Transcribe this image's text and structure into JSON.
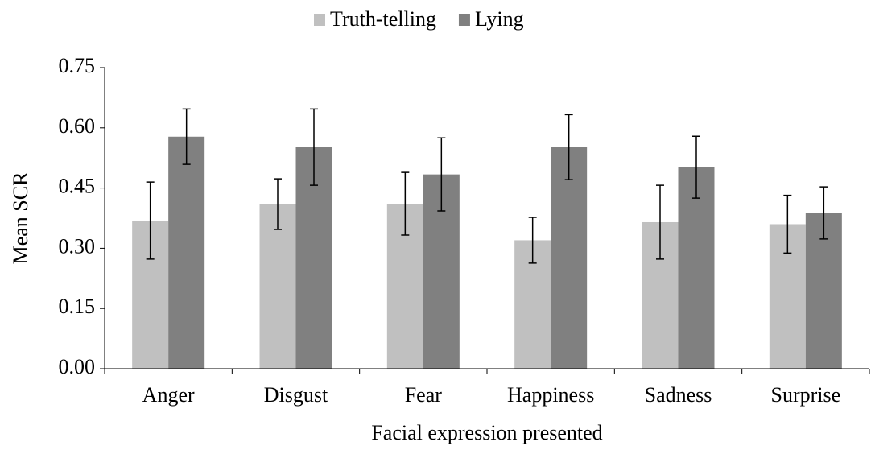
{
  "chart_data": {
    "type": "bar",
    "xlabel": "Facial expression presented",
    "ylabel": "Mean SCR",
    "categories": [
      "Anger",
      "Disgust",
      "Fear",
      "Happiness",
      "Sadness",
      "Surprise"
    ],
    "series": [
      {
        "name": "Truth-telling",
        "color": "#c0c0c0",
        "values": [
          0.369,
          0.41,
          0.411,
          0.32,
          0.365,
          0.36
        ],
        "errors": [
          0.096,
          0.063,
          0.078,
          0.057,
          0.092,
          0.072
        ]
      },
      {
        "name": "Lying",
        "color": "#808080",
        "values": [
          0.578,
          0.552,
          0.484,
          0.552,
          0.502,
          0.388
        ],
        "errors": [
          0.069,
          0.095,
          0.091,
          0.081,
          0.077,
          0.065
        ]
      }
    ],
    "ylim": [
      0,
      0.75
    ],
    "yticks": [
      {
        "value": 0,
        "label": "0.00"
      },
      {
        "value": 0.15,
        "label": "0.15"
      },
      {
        "value": 0.3,
        "label": "0.30"
      },
      {
        "value": 0.45,
        "label": "0.45"
      },
      {
        "value": 0.6,
        "label": "0.60"
      },
      {
        "value": 0.75,
        "label": "0.75"
      }
    ],
    "legend": "top"
  }
}
